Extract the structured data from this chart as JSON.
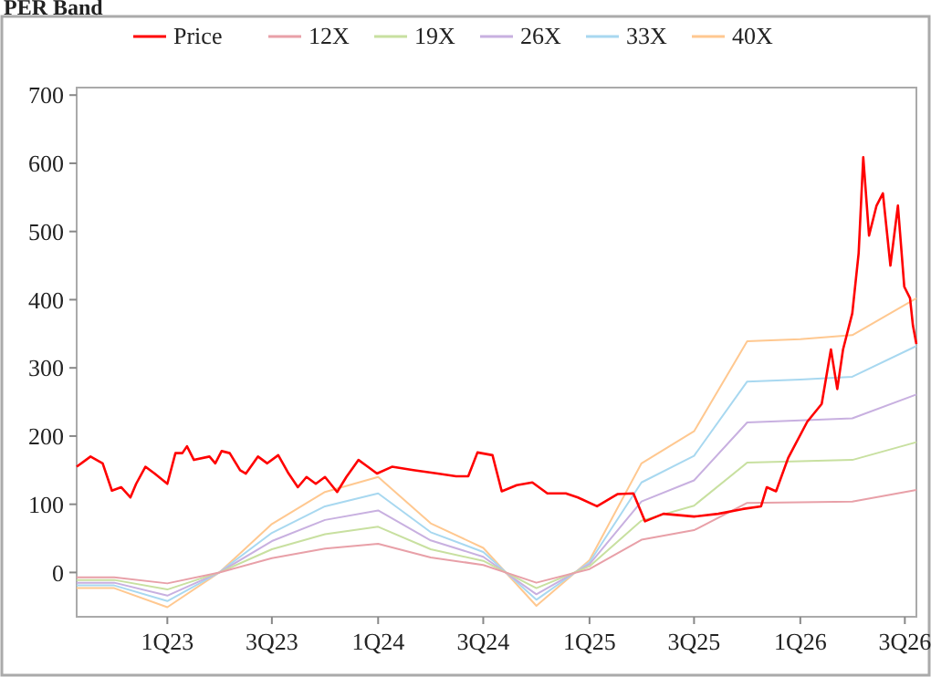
{
  "chart_data": {
    "type": "line",
    "title": "PER Band",
    "xlim": [
      "2022-07-28",
      "2026-07-21"
    ],
    "xticks": [
      {
        "value": "2023-01-01",
        "label": "1Q23"
      },
      {
        "value": "2023-07-01",
        "label": "3Q23"
      },
      {
        "value": "2024-01-01",
        "label": "1Q24"
      },
      {
        "value": "2024-07-01",
        "label": "3Q24"
      },
      {
        "value": "2025-01-01",
        "label": "1Q25"
      },
      {
        "value": "2025-07-01",
        "label": "3Q25"
      },
      {
        "value": "2026-01-01",
        "label": "1Q26"
      },
      {
        "value": "2026-07-01",
        "label": "3Q26"
      }
    ],
    "ylim": [
      -65,
      711
    ],
    "yticks": [
      0,
      100,
      200,
      300,
      400,
      500,
      600,
      700
    ],
    "legend": "top",
    "grid": false,
    "series": [
      {
        "name": "Price",
        "color": "#ff0000",
        "x": [
          "2022-07-28",
          "2022-08-21",
          "2022-09-11",
          "2022-09-27",
          "2022-10-13",
          "2022-10-29",
          "2022-11-08",
          "2022-11-24",
          "2022-12-10",
          "2023-01-01",
          "2023-01-15",
          "2023-01-27",
          "2023-02-04",
          "2023-02-16",
          "2023-03-15",
          "2023-03-25",
          "2023-04-05",
          "2023-04-19",
          "2023-05-07",
          "2023-05-17",
          "2023-06-07",
          "2023-06-23",
          "2023-07-12",
          "2023-07-30",
          "2023-08-15",
          "2023-08-30",
          "2023-09-15",
          "2023-10-01",
          "2023-10-22",
          "2023-11-07",
          "2023-11-28",
          "2023-12-14",
          "2023-12-30",
          "2024-01-25",
          "2024-03-02",
          "2024-04-13",
          "2024-05-15",
          "2024-06-05",
          "2024-06-21",
          "2024-07-17",
          "2024-08-02",
          "2024-08-28",
          "2024-09-24",
          "2024-10-20",
          "2024-11-21",
          "2024-12-12",
          "2025-01-14",
          "2025-02-19",
          "2025-03-18",
          "2025-04-07",
          "2025-05-09",
          "2025-07-01",
          "2025-08-12",
          "2025-09-23",
          "2025-10-25",
          "2025-11-04",
          "2025-11-20",
          "2025-12-11",
          "2026-01-13",
          "2026-02-07",
          "2026-02-23",
          "2026-03-06",
          "2026-03-16",
          "2026-04-01",
          "2026-04-12",
          "2026-04-20",
          "2026-04-30",
          "2026-05-13",
          "2026-05-24",
          "2026-06-06",
          "2026-06-19",
          "2026-06-30",
          "2026-07-10",
          "2026-07-15",
          "2026-07-21"
        ],
        "values": [
          155,
          170,
          160,
          120,
          125,
          110,
          130,
          155,
          145,
          130,
          175,
          175,
          185,
          165,
          170,
          160,
          178,
          175,
          150,
          145,
          170,
          160,
          172,
          145,
          125,
          140,
          130,
          140,
          118,
          140,
          165,
          155,
          145,
          155,
          150,
          145,
          141,
          141,
          176,
          172,
          119,
          128,
          132,
          116,
          116,
          110,
          97,
          115,
          116,
          75,
          86,
          82,
          86,
          93,
          97,
          125,
          119,
          168,
          221,
          247,
          327,
          269,
          327,
          380,
          468,
          609,
          494,
          538,
          556,
          450,
          538,
          419,
          402,
          362,
          335
        ]
      },
      {
        "name": "12X",
        "color": "#e8a0a8",
        "x": [
          "2022-07-28",
          "2022-10-01",
          "2023-01-01",
          "2023-04-01",
          "2023-07-01",
          "2023-10-01",
          "2024-01-01",
          "2024-04-01",
          "2024-07-01",
          "2024-10-01",
          "2025-01-01",
          "2025-04-01",
          "2025-07-01",
          "2025-10-01",
          "2026-01-01",
          "2026-04-01",
          "2026-07-21"
        ],
        "values": [
          -7,
          -7,
          -16,
          0,
          21,
          35,
          42,
          22,
          11,
          -15,
          5,
          48,
          62,
          102,
          103,
          104,
          121
        ]
      },
      {
        "name": "19X",
        "color": "#c8e0a0",
        "x": [
          "2022-07-28",
          "2022-10-01",
          "2023-01-01",
          "2023-04-01",
          "2023-07-01",
          "2023-10-01",
          "2024-01-01",
          "2024-04-01",
          "2024-07-01",
          "2024-10-01",
          "2025-01-01",
          "2025-04-01",
          "2025-07-01",
          "2025-10-01",
          "2026-01-01",
          "2026-04-01",
          "2026-07-21"
        ],
        "values": [
          -11,
          -11,
          -25,
          0,
          34,
          56,
          67,
          34,
          17,
          -23,
          9,
          76,
          98,
          161,
          163,
          165,
          191
        ]
      },
      {
        "name": "26X",
        "color": "#c8b0e0",
        "x": [
          "2022-07-28",
          "2022-10-01",
          "2023-01-01",
          "2023-04-01",
          "2023-07-01",
          "2023-10-01",
          "2024-01-01",
          "2024-04-01",
          "2024-07-01",
          "2024-10-01",
          "2025-01-01",
          "2025-04-01",
          "2025-07-01",
          "2025-10-01",
          "2026-01-01",
          "2026-04-01",
          "2026-07-21"
        ],
        "values": [
          -15,
          -15,
          -34,
          0,
          46,
          77,
          91,
          47,
          23,
          -32,
          12,
          104,
          135,
          220,
          223,
          226,
          261
        ]
      },
      {
        "name": "33X",
        "color": "#a8d8f0",
        "x": [
          "2022-07-28",
          "2022-10-01",
          "2023-01-01",
          "2023-04-01",
          "2023-07-01",
          "2023-10-01",
          "2024-01-01",
          "2024-04-01",
          "2024-07-01",
          "2024-10-01",
          "2025-01-01",
          "2025-04-01",
          "2025-07-01",
          "2025-10-01",
          "2026-01-01",
          "2026-04-01",
          "2026-07-21"
        ],
        "values": [
          -19,
          -19,
          -42,
          0,
          58,
          97,
          116,
          59,
          30,
          -40,
          15,
          132,
          171,
          280,
          283,
          287,
          332
        ]
      },
      {
        "name": "40X",
        "color": "#ffc890",
        "x": [
          "2022-07-28",
          "2022-10-01",
          "2023-01-01",
          "2023-04-01",
          "2023-07-01",
          "2023-10-01",
          "2024-01-01",
          "2024-04-01",
          "2024-07-01",
          "2024-10-01",
          "2025-01-01",
          "2025-04-01",
          "2025-07-01",
          "2025-10-01",
          "2026-01-01",
          "2026-04-01",
          "2026-07-21"
        ],
        "values": [
          -23,
          -23,
          -51,
          0,
          71,
          118,
          140,
          72,
          36,
          -49,
          18,
          160,
          207,
          339,
          342,
          348,
          402
        ]
      }
    ]
  }
}
